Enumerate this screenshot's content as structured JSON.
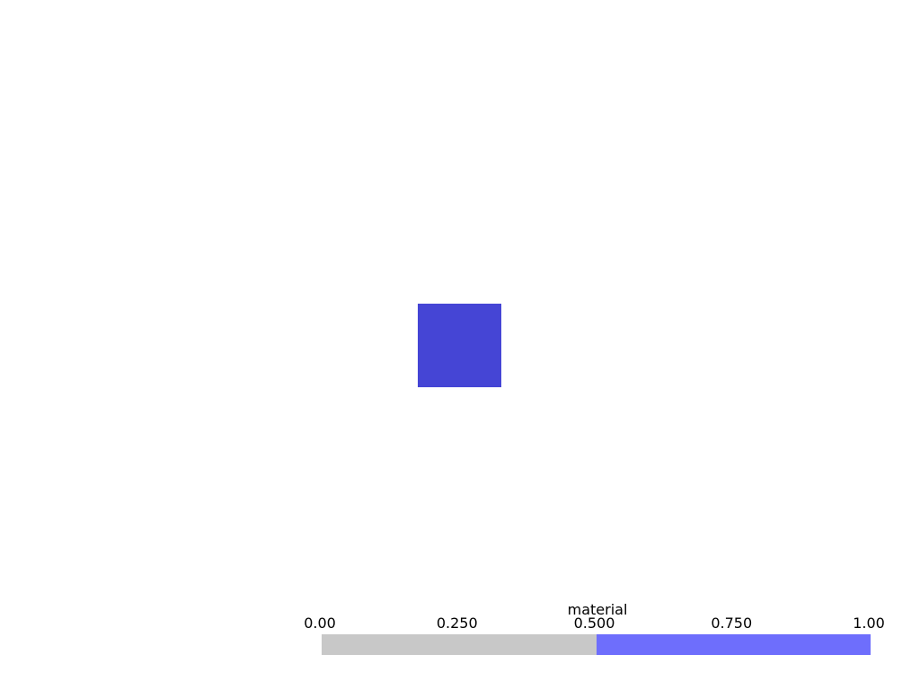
{
  "scene": {
    "background_color": "#ffffff",
    "mesh_color": "#4545d5"
  },
  "scalar_bar": {
    "title": "material",
    "range": [
      0.0,
      1.0
    ],
    "ticks": [
      {
        "value": 0.0,
        "label": "0.00"
      },
      {
        "value": 0.25,
        "label": "0.250"
      },
      {
        "value": 0.5,
        "label": "0.500"
      },
      {
        "value": 0.75,
        "label": "0.750"
      },
      {
        "value": 1.0,
        "label": "1.00"
      }
    ],
    "colormap": [
      {
        "from": 0.0,
        "to": 0.5,
        "color": "#c8c8c8"
      },
      {
        "from": 0.5,
        "to": 1.0,
        "color": "#6e6efc"
      }
    ]
  }
}
